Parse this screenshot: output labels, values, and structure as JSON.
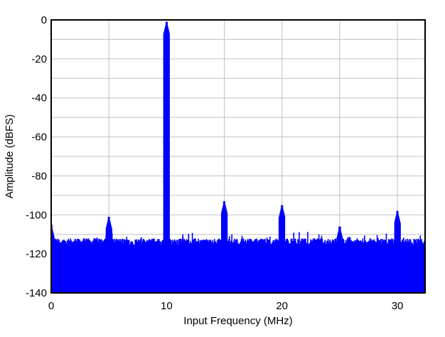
{
  "chart_data": {
    "type": "line",
    "title": "",
    "xlabel": "Input Frequency (MHz)",
    "ylabel": "Amplitude (dBFS)",
    "xlim": [
      0,
      32.4
    ],
    "ylim": [
      -140,
      0
    ],
    "xticks": [
      0,
      10,
      20,
      30
    ],
    "yticks": [
      0,
      -20,
      -40,
      -60,
      -80,
      -100,
      -120,
      -140
    ],
    "x_grid_step": 5,
    "y_grid_step": 10,
    "grid": true,
    "line_color": "#0000ff",
    "grid_color": "#c0c0c0",
    "noise_floor_dbfs": -114,
    "spurs": [
      {
        "x": 0.0,
        "y": -105
      },
      {
        "x": 5.0,
        "y": -101
      },
      {
        "x": 10.0,
        "y": -1
      },
      {
        "x": 15.0,
        "y": -93
      },
      {
        "x": 20.0,
        "y": -95
      },
      {
        "x": 25.0,
        "y": -106
      },
      {
        "x": 30.0,
        "y": -98
      }
    ]
  }
}
